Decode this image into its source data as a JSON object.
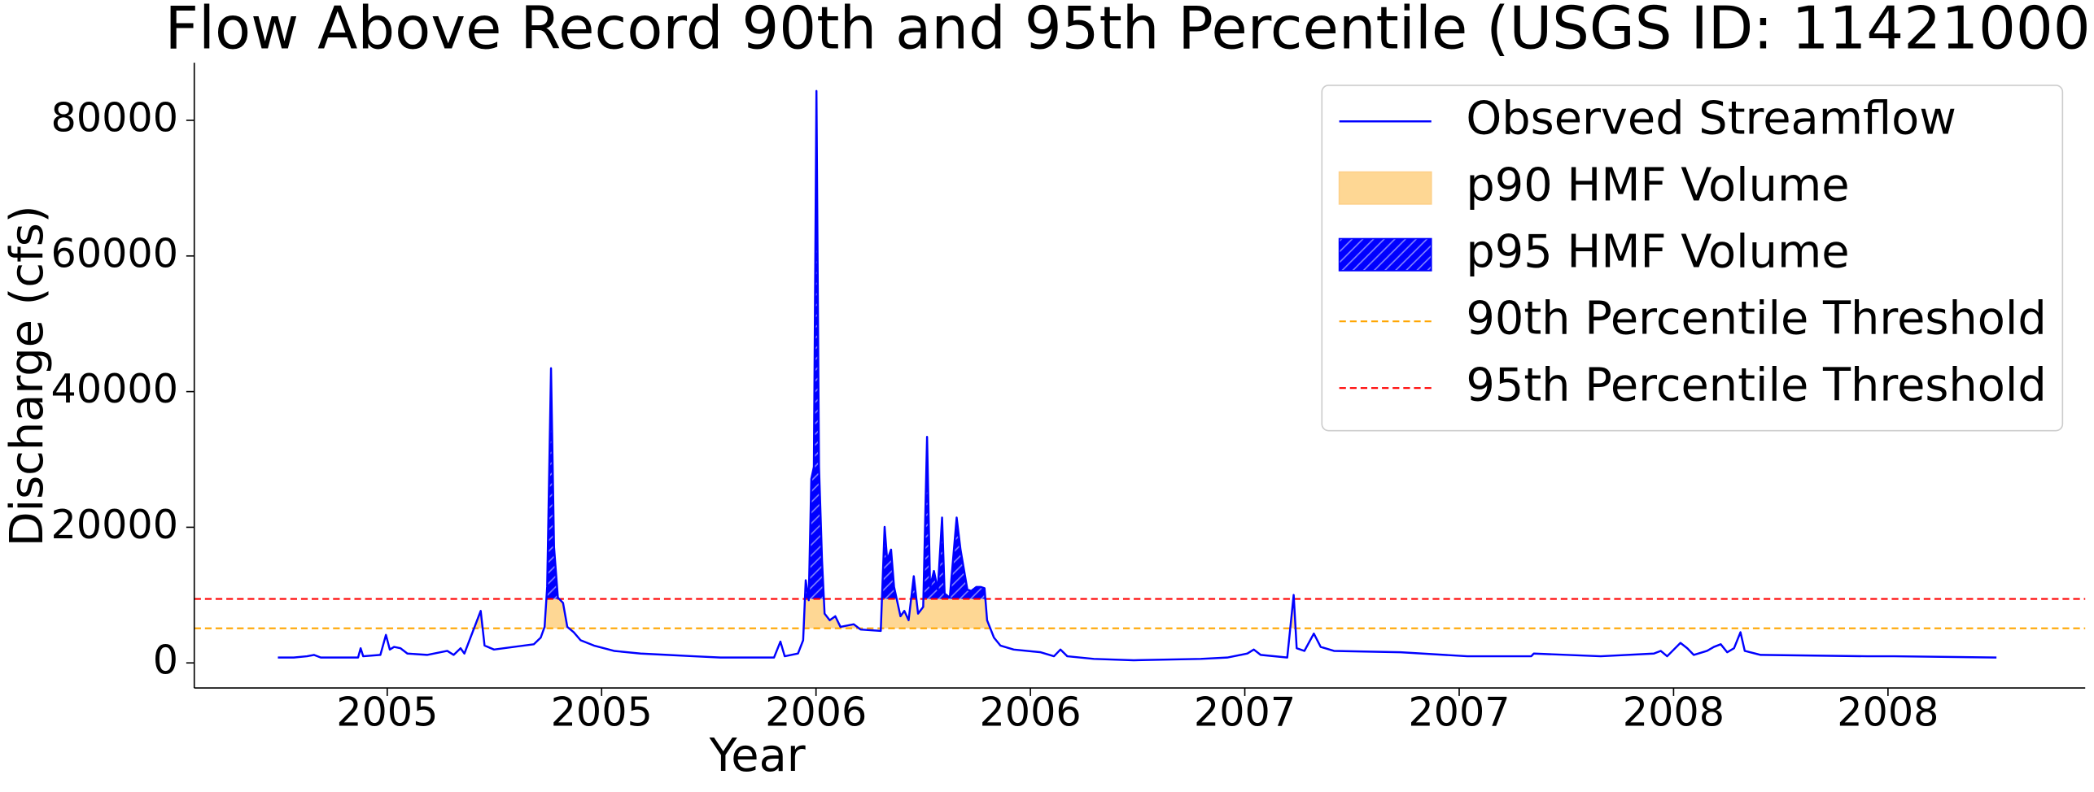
{
  "chart_data": {
    "type": "line",
    "title": "Flow Above Record 90th and 95th Percentile (USGS ID: 11421000)",
    "x_label": "Year",
    "y_label": "Discharge (cfs)",
    "x": [
      2004.745,
      2004.782,
      2004.813,
      2004.829,
      2004.845,
      2004.907,
      2004.932,
      2004.938,
      2004.944,
      2004.984,
      2004.997,
      2005.006,
      2005.016,
      2005.031,
      2005.047,
      2005.093,
      2005.14,
      2005.155,
      2005.171,
      2005.18,
      2005.218,
      2005.227,
      2005.249,
      2005.295,
      2005.342,
      2005.358,
      2005.367,
      2005.373,
      2005.382,
      2005.389,
      2005.398,
      2005.41,
      2005.42,
      2005.435,
      2005.451,
      2005.482,
      2005.529,
      2005.591,
      2005.653,
      2005.715,
      2005.777,
      2005.902,
      2005.917,
      2005.927,
      2005.958,
      2005.97,
      2005.976,
      2005.983,
      2005.989,
      2005.995,
      2006.001,
      2006.007,
      2006.014,
      2006.02,
      2006.032,
      2006.045,
      2006.057,
      2006.088,
      2006.104,
      2006.151,
      2006.16,
      2006.166,
      2006.175,
      2006.182,
      2006.197,
      2006.206,
      2006.216,
      2006.228,
      2006.238,
      2006.25,
      2006.259,
      2006.266,
      2006.275,
      2006.284,
      2006.294,
      2006.3,
      2006.312,
      2006.328,
      2006.337,
      2006.353,
      2006.362,
      2006.374,
      2006.384,
      2006.393,
      2006.399,
      2006.415,
      2006.43,
      2006.461,
      2006.524,
      2006.555,
      2006.57,
      2006.586,
      2006.648,
      2006.741,
      2006.897,
      2006.959,
      2007.006,
      2007.021,
      2007.037,
      2007.099,
      2007.114,
      2007.121,
      2007.139,
      2007.161,
      2007.177,
      2007.208,
      2007.363,
      2007.519,
      2007.668,
      2007.674,
      2007.83,
      2007.954,
      2007.97,
      2007.985,
      2008.016,
      2008.032,
      2008.047,
      2008.078,
      2008.094,
      2008.11,
      2008.125,
      2008.141,
      2008.156,
      2008.166,
      2008.203,
      2008.452,
      2008.514,
      2008.753
    ],
    "series": [
      {
        "name": "Observed Streamflow",
        "color": "#0000ff",
        "values": [
          790,
          790,
          980,
          1180,
          790,
          790,
          790,
          2160,
          980,
          1180,
          4130,
          1970,
          2360,
          2160,
          1380,
          1180,
          1770,
          1180,
          2160,
          1380,
          7670,
          2560,
          1970,
          2360,
          2750,
          3730,
          5310,
          11200,
          43440,
          17100,
          9630,
          8850,
          5310,
          4520,
          3340,
          2560,
          1770,
          1380,
          1180,
          980,
          790,
          790,
          3140,
          980,
          1380,
          3340,
          12190,
          9240,
          27120,
          28890,
          84330,
          28890,
          15130,
          7270,
          6290,
          6880,
          5310,
          5700,
          4920,
          4720,
          20050,
          15130,
          16710,
          11200,
          6880,
          7670,
          6290,
          12780,
          7270,
          8260,
          33330,
          11200,
          13560,
          10810,
          21430,
          10220,
          9630,
          21430,
          16710,
          10810,
          10610,
          11200,
          11200,
          11010,
          6290,
          3730,
          2560,
          1970,
          1570,
          980,
          1970,
          980,
          590,
          390,
          590,
          790,
          1380,
          1970,
          1180,
          790,
          10020,
          2160,
          1770,
          4320,
          2360,
          1770,
          1570,
          980,
          980,
          1380,
          980,
          1380,
          1770,
          980,
          2950,
          2160,
          1180,
          1770,
          2360,
          2750,
          1570,
          2160,
          4520,
          1770,
          1180,
          980,
          980,
          790
        ]
      }
    ],
    "fills": [
      {
        "name": "p90 HMF Volume",
        "color": "#fed794"
      },
      {
        "name": "p95 HMF Volume",
        "color": "#0000ff",
        "hatch": "//"
      }
    ],
    "thresholds": [
      {
        "name": "90th Percentile Threshold",
        "value": 5100,
        "color": "#ffa500"
      },
      {
        "name": "95th Percentile Threshold",
        "value": 9430,
        "color": "#ff0000"
      }
    ],
    "xlim": [
      2004.55,
      2008.96
    ],
    "ylim": [
      -3700,
      88500
    ],
    "xticks": [
      2005,
      {
        "value": 2005.5,
        "label": "2005"
      },
      2006,
      {
        "value": 2006.5,
        "label": "2006"
      },
      2007,
      {
        "value": 2007.5,
        "label": "2007"
      },
      2008,
      {
        "value": 2008.5,
        "label": "2008"
      }
    ],
    "yticks": [
      0,
      20000,
      40000,
      60000,
      80000
    ],
    "legend": "upper right"
  }
}
